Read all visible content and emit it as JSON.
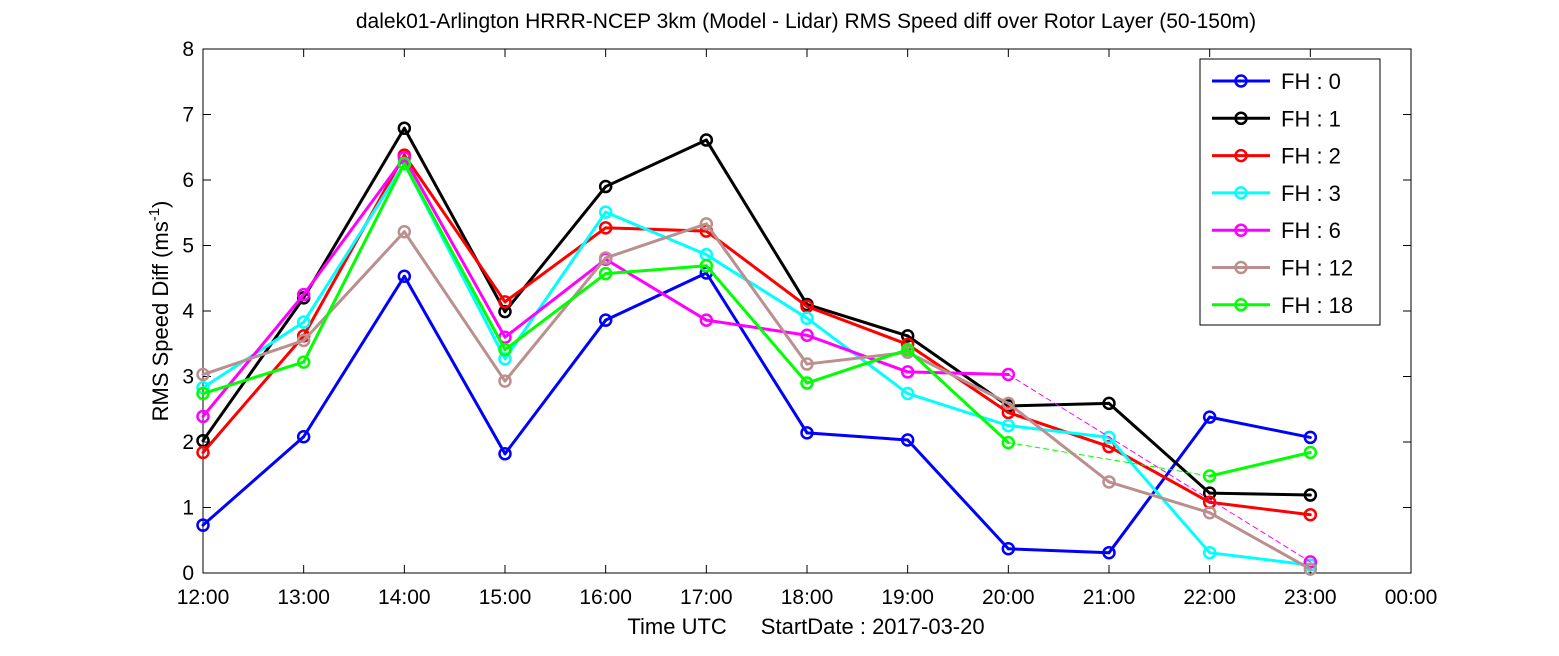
{
  "chart_data": {
    "type": "line",
    "title": "dalek01-Arlington HRRR-NCEP 3km (Model - Lidar) RMS Speed diff over Rotor Layer (50-150m)",
    "xlabel_time": "Time UTC",
    "xlabel_start": "StartDate : 2017-03-20",
    "ylabel_main": "RMS Speed Diff (ms",
    "ylabel_sup": "-1",
    "ylabel_close": ")",
    "xlim": [
      12,
      24
    ],
    "ylim": [
      0,
      8
    ],
    "x_ticks": [
      {
        "value": 12,
        "label": "12:00"
      },
      {
        "value": 13,
        "label": "13:00"
      },
      {
        "value": 14,
        "label": "14:00"
      },
      {
        "value": 15,
        "label": "15:00"
      },
      {
        "value": 16,
        "label": "16:00"
      },
      {
        "value": 17,
        "label": "17:00"
      },
      {
        "value": 18,
        "label": "18:00"
      },
      {
        "value": 19,
        "label": "19:00"
      },
      {
        "value": 20,
        "label": "20:00"
      },
      {
        "value": 21,
        "label": "21:00"
      },
      {
        "value": 22,
        "label": "22:00"
      },
      {
        "value": 23,
        "label": "23:00"
      },
      {
        "value": 24,
        "label": "00:00"
      }
    ],
    "y_ticks": [
      {
        "value": 0,
        "label": "0"
      },
      {
        "value": 1,
        "label": "1"
      },
      {
        "value": 2,
        "label": "2"
      },
      {
        "value": 3,
        "label": "3"
      },
      {
        "value": 4,
        "label": "4"
      },
      {
        "value": 5,
        "label": "5"
      },
      {
        "value": 6,
        "label": "6"
      },
      {
        "value": 7,
        "label": "7"
      },
      {
        "value": 8,
        "label": "8"
      }
    ],
    "legend_position": "top-right",
    "series": [
      {
        "name": "FH : 0",
        "color": "#0000ff",
        "points": [
          [
            12,
            0.73
          ],
          [
            13,
            2.08
          ],
          [
            14,
            4.53
          ],
          [
            15,
            1.82
          ],
          [
            16,
            3.86
          ],
          [
            17,
            4.58
          ],
          [
            18,
            2.14
          ],
          [
            19,
            2.03
          ],
          [
            20,
            0.37
          ],
          [
            21,
            0.31
          ],
          [
            22,
            2.38
          ],
          [
            23,
            2.07
          ]
        ],
        "dashed": []
      },
      {
        "name": "FH : 1",
        "color": "#000000",
        "points": [
          [
            12,
            2.02
          ],
          [
            13,
            4.2
          ],
          [
            14,
            6.79
          ],
          [
            15,
            3.99
          ],
          [
            16,
            5.9
          ],
          [
            17,
            6.61
          ],
          [
            18,
            4.1
          ],
          [
            19,
            3.62
          ],
          [
            20,
            2.55
          ],
          [
            21,
            2.59
          ],
          [
            22,
            1.22
          ],
          [
            23,
            1.19
          ]
        ],
        "dashed": []
      },
      {
        "name": "FH : 2",
        "color": "#ff0000",
        "points": [
          [
            12,
            1.84
          ],
          [
            13,
            3.62
          ],
          [
            14,
            6.38
          ],
          [
            15,
            4.14
          ],
          [
            16,
            5.27
          ],
          [
            17,
            5.22
          ],
          [
            18,
            4.07
          ],
          [
            19,
            3.49
          ],
          [
            20,
            2.45
          ],
          [
            21,
            1.93
          ],
          [
            22,
            1.08
          ],
          [
            23,
            0.89
          ]
        ],
        "dashed": []
      },
      {
        "name": "FH : 3",
        "color": "#00ffff",
        "points": [
          [
            12,
            2.83
          ],
          [
            13,
            3.83
          ],
          [
            14,
            6.25
          ],
          [
            15,
            3.27
          ],
          [
            16,
            5.51
          ],
          [
            17,
            4.86
          ],
          [
            18,
            3.89
          ],
          [
            19,
            2.74
          ],
          [
            20,
            2.25
          ],
          [
            21,
            2.07
          ],
          [
            22,
            0.31
          ],
          [
            23,
            0.12
          ]
        ],
        "dashed": []
      },
      {
        "name": "FH : 6",
        "color": "#ff00ff",
        "points": [
          [
            12,
            2.39
          ],
          [
            13,
            4.25
          ],
          [
            14,
            6.34
          ],
          [
            15,
            3.6
          ],
          [
            16,
            4.79
          ],
          [
            17,
            3.86
          ],
          [
            18,
            3.63
          ],
          [
            19,
            3.07
          ],
          [
            20,
            3.03
          ],
          [
            23,
            0.17
          ]
        ],
        "dashed": [
          [
            20,
            23
          ]
        ]
      },
      {
        "name": "FH : 12",
        "color": "#bc8f8f",
        "points": [
          [
            12,
            3.03
          ],
          [
            13,
            3.55
          ],
          [
            14,
            5.21
          ],
          [
            15,
            2.93
          ],
          [
            16,
            4.81
          ],
          [
            17,
            5.33
          ],
          [
            18,
            3.19
          ],
          [
            19,
            3.37
          ],
          [
            20,
            2.59
          ],
          [
            21,
            1.39
          ],
          [
            22,
            0.92
          ],
          [
            23,
            0.06
          ]
        ],
        "dashed": []
      },
      {
        "name": "FH : 18",
        "color": "#00ff00",
        "points": [
          [
            12,
            2.74
          ],
          [
            13,
            3.22
          ],
          [
            14,
            6.25
          ],
          [
            15,
            3.41
          ],
          [
            16,
            4.57
          ],
          [
            17,
            4.69
          ],
          [
            18,
            2.9
          ],
          [
            19,
            3.41
          ],
          [
            20,
            1.99
          ],
          [
            22,
            1.48
          ],
          [
            23,
            1.84
          ]
        ],
        "dashed": [
          [
            20,
            22
          ]
        ]
      }
    ]
  }
}
